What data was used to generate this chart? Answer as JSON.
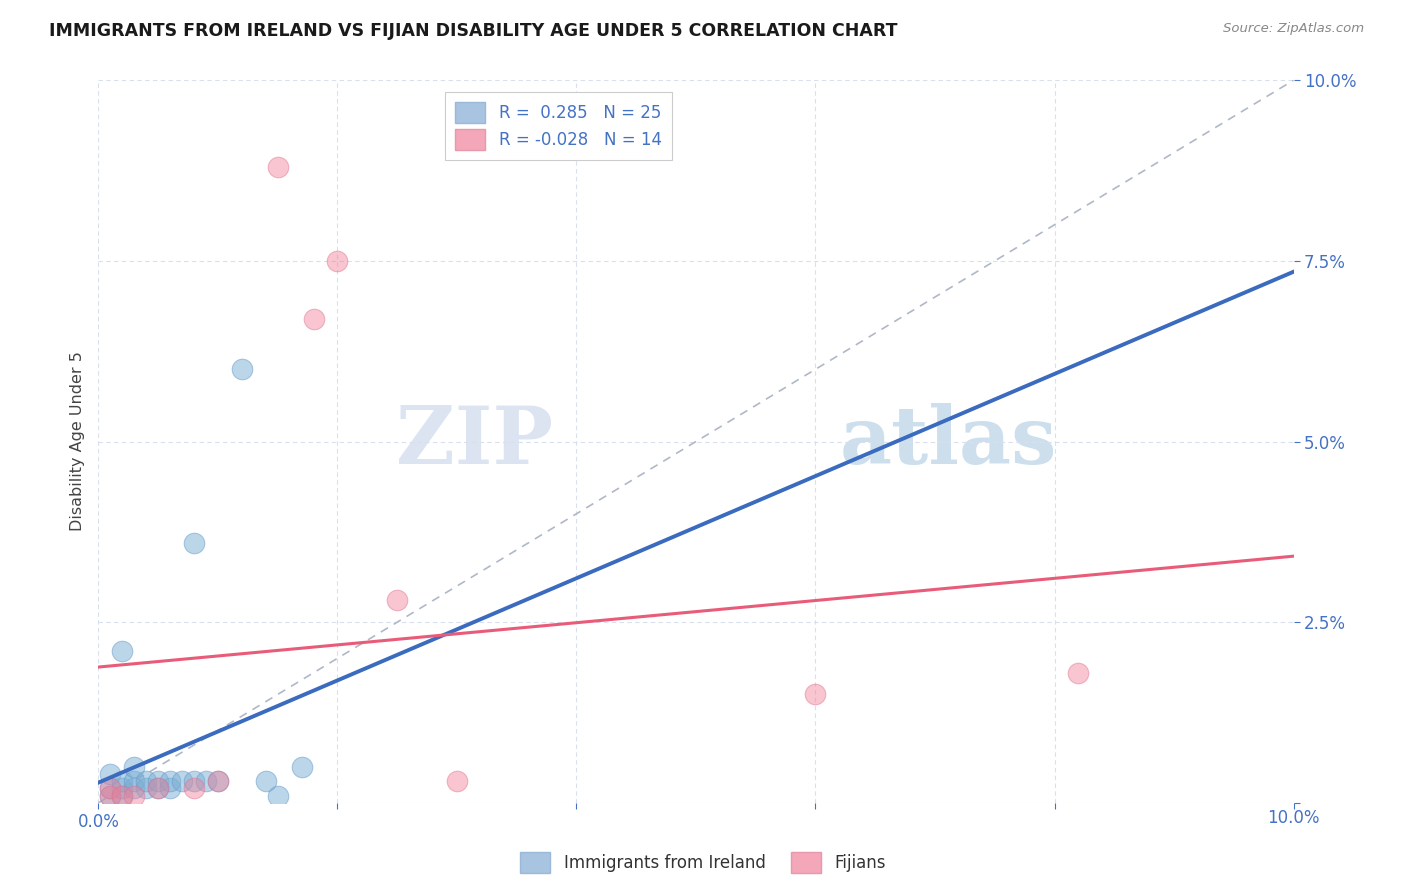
{
  "title": "IMMIGRANTS FROM IRELAND VS FIJIAN DISABILITY AGE UNDER 5 CORRELATION CHART",
  "source": "Source: ZipAtlas.com",
  "ylabel": "Disability Age Under 5",
  "xlim": [
    0.0,
    0.1
  ],
  "ylim": [
    0.0,
    0.1
  ],
  "blue_scatter": [
    [
      0.001,
      0.001
    ],
    [
      0.001,
      0.002
    ],
    [
      0.001,
      0.004
    ],
    [
      0.002,
      0.001
    ],
    [
      0.002,
      0.002
    ],
    [
      0.002,
      0.003
    ],
    [
      0.002,
      0.021
    ],
    [
      0.003,
      0.002
    ],
    [
      0.003,
      0.003
    ],
    [
      0.003,
      0.005
    ],
    [
      0.004,
      0.002
    ],
    [
      0.004,
      0.003
    ],
    [
      0.005,
      0.002
    ],
    [
      0.005,
      0.003
    ],
    [
      0.006,
      0.002
    ],
    [
      0.006,
      0.003
    ],
    [
      0.007,
      0.003
    ],
    [
      0.008,
      0.003
    ],
    [
      0.008,
      0.036
    ],
    [
      0.009,
      0.003
    ],
    [
      0.01,
      0.003
    ],
    [
      0.012,
      0.06
    ],
    [
      0.014,
      0.003
    ],
    [
      0.015,
      0.001
    ],
    [
      0.017,
      0.005
    ]
  ],
  "pink_scatter": [
    [
      0.001,
      0.001
    ],
    [
      0.001,
      0.002
    ],
    [
      0.002,
      0.001
    ],
    [
      0.003,
      0.001
    ],
    [
      0.005,
      0.002
    ],
    [
      0.008,
      0.002
    ],
    [
      0.01,
      0.003
    ],
    [
      0.015,
      0.088
    ],
    [
      0.018,
      0.067
    ],
    [
      0.02,
      0.075
    ],
    [
      0.025,
      0.028
    ],
    [
      0.03,
      0.003
    ],
    [
      0.06,
      0.015
    ],
    [
      0.082,
      0.018
    ]
  ],
  "blue_color": "#7bafd4",
  "pink_color": "#f08097",
  "blue_line_color": "#3a6bbf",
  "pink_line_color": "#e85c7a",
  "diagonal_color": "#b0b8c8",
  "grid_color": "#d8e0ee",
  "watermark_zip": "ZIP",
  "watermark_atlas": "atlas",
  "blue_legend_label": "R =  0.285   N = 25",
  "pink_legend_label": "R = -0.028   N = 14",
  "bottom_blue_label": "Immigrants from Ireland",
  "bottom_pink_label": "Fijians"
}
